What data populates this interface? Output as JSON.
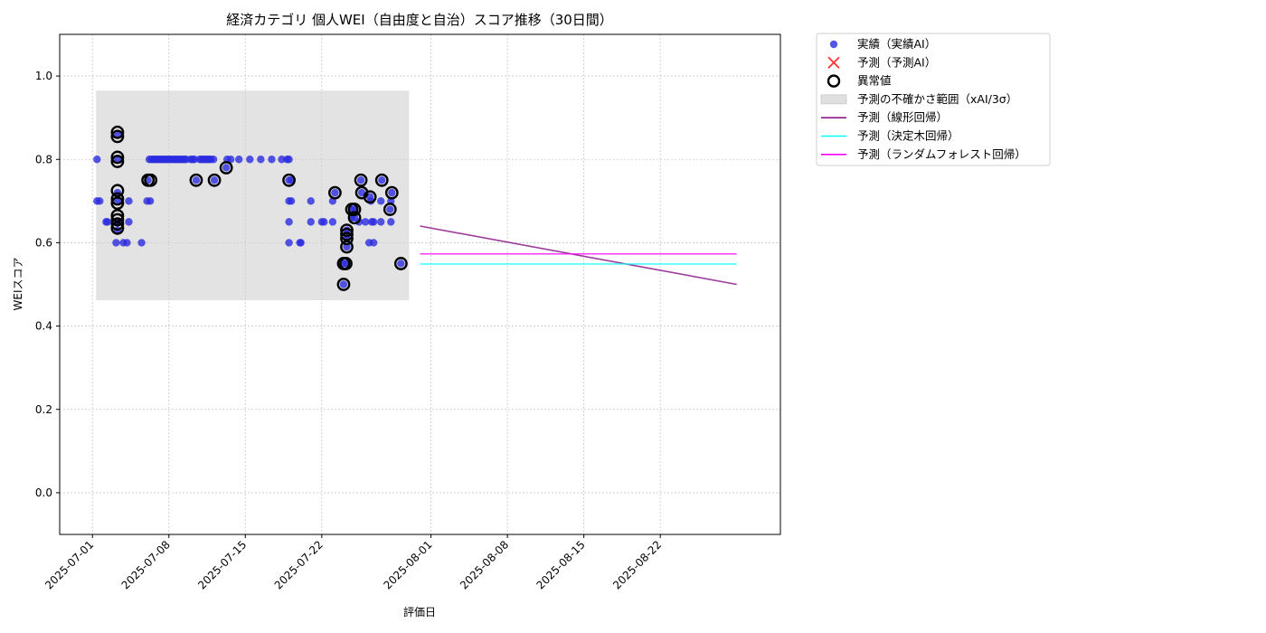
{
  "chart_data": {
    "type": "scatter",
    "title": "経済カテゴリ 個人WEI（自由度と自治）スコア推移（30日間）",
    "xlabel": "評価日",
    "ylabel": "WEIスコア",
    "xlim": [
      "2025-06-28",
      "2025-09-02"
    ],
    "ylim": [
      -0.1,
      1.1
    ],
    "x_ticks": [
      "2025-07-01",
      "2025-07-08",
      "2025-07-15",
      "2025-07-22",
      "2025-08-01",
      "2025-08-08",
      "2025-08-15",
      "2025-08-22"
    ],
    "y_ticks": [
      "0.0",
      "0.2",
      "0.4",
      "0.6",
      "0.8",
      "1.0"
    ],
    "grid": true,
    "legend_position": "outside-right-top",
    "colors": {
      "actual": "#2a2ae0",
      "predicted_marker": "#ff3030",
      "anomaly": "#000000",
      "uncertainty": "#cccccc",
      "linear": "#8b1a8b",
      "tree": "#00ffff",
      "forest": "#ff00ff"
    },
    "legend": [
      {
        "key": "actual",
        "label": "実績（実績AI）",
        "symbol": "dot"
      },
      {
        "key": "predicted",
        "label": "予測（予測AI）",
        "symbol": "cross"
      },
      {
        "key": "anomaly",
        "label": "異常値",
        "symbol": "ring"
      },
      {
        "key": "uncertainty",
        "label": "予測の不確かさ範囲（xAI/3σ）",
        "symbol": "box"
      },
      {
        "key": "linear",
        "label": "予測（線形回帰）",
        "symbol": "line"
      },
      {
        "key": "tree",
        "label": "予測（決定木回帰）",
        "symbol": "line"
      },
      {
        "key": "forest",
        "label": "予測（ランダムフォレスト回帰）",
        "symbol": "line"
      }
    ],
    "uncertainty_band": {
      "x": [
        "2025-07-01 08:00",
        "2025-07-30 00:00"
      ],
      "y": [
        0.462,
        0.965
      ]
    },
    "series": [
      {
        "name": "実績（実績AI）",
        "type": "scatter",
        "points": [
          [
            "2025-07-01 10:00",
            0.8
          ],
          [
            "2025-07-01 10:00",
            0.7
          ],
          [
            "2025-07-01 16:00",
            0.7
          ],
          [
            "2025-07-02 06:00",
            0.65
          ],
          [
            "2025-07-02 09:00",
            0.65
          ],
          [
            "2025-07-03 04:00",
            0.6
          ],
          [
            "2025-07-03 04:00",
            0.65
          ],
          [
            "2025-07-03 07:00",
            0.7
          ],
          [
            "2025-07-03 07:00",
            0.8
          ],
          [
            "2025-07-03 07:00",
            0.86
          ],
          [
            "2025-07-03 07:00",
            0.72
          ],
          [
            "2025-07-03 07:00",
            0.63
          ],
          [
            "2025-07-03 12:00",
            0.65
          ],
          [
            "2025-07-03 20:00",
            0.6
          ],
          [
            "2025-07-04 04:00",
            0.6
          ],
          [
            "2025-07-04 08:00",
            0.65
          ],
          [
            "2025-07-04 08:00",
            0.7
          ],
          [
            "2025-07-05 12:00",
            0.6
          ],
          [
            "2025-07-06 00:00",
            0.7
          ],
          [
            "2025-07-06 02:00",
            0.75
          ],
          [
            "2025-07-06 05:00",
            0.8
          ],
          [
            "2025-07-06 07:00",
            0.7
          ],
          [
            "2025-07-06 10:00",
            0.8
          ],
          [
            "2025-07-06 14:00",
            0.8
          ],
          [
            "2025-07-06 18:00",
            0.8
          ],
          [
            "2025-07-06 22:00",
            0.8
          ],
          [
            "2025-07-07 02:00",
            0.8
          ],
          [
            "2025-07-07 06:00",
            0.8
          ],
          [
            "2025-07-07 10:00",
            0.8
          ],
          [
            "2025-07-07 14:00",
            0.8
          ],
          [
            "2025-07-07 18:00",
            0.8
          ],
          [
            "2025-07-07 22:00",
            0.8
          ],
          [
            "2025-07-08 02:00",
            0.8
          ],
          [
            "2025-07-08 06:00",
            0.8
          ],
          [
            "2025-07-08 10:00",
            0.8
          ],
          [
            "2025-07-08 14:00",
            0.8
          ],
          [
            "2025-07-08 18:00",
            0.8
          ],
          [
            "2025-07-08 22:00",
            0.8
          ],
          [
            "2025-07-09 02:00",
            0.8
          ],
          [
            "2025-07-09 06:00",
            0.8
          ],
          [
            "2025-07-09 10:00",
            0.8
          ],
          [
            "2025-07-09 14:00",
            0.8
          ],
          [
            "2025-07-10 00:00",
            0.8
          ],
          [
            "2025-07-10 04:00",
            0.8
          ],
          [
            "2025-07-10 08:00",
            0.8
          ],
          [
            "2025-07-10 12:00",
            0.75
          ],
          [
            "2025-07-10 20:00",
            0.8
          ],
          [
            "2025-07-11 00:00",
            0.8
          ],
          [
            "2025-07-11 04:00",
            0.8
          ],
          [
            "2025-07-11 08:00",
            0.8
          ],
          [
            "2025-07-11 12:00",
            0.8
          ],
          [
            "2025-07-11 16:00",
            0.8
          ],
          [
            "2025-07-11 20:00",
            0.8
          ],
          [
            "2025-07-12 02:00",
            0.8
          ],
          [
            "2025-07-12 04:00",
            0.75
          ],
          [
            "2025-07-13 06:00",
            0.78
          ],
          [
            "2025-07-13 08:00",
            0.8
          ],
          [
            "2025-07-13 16:00",
            0.8
          ],
          [
            "2025-07-14 10:00",
            0.8
          ],
          [
            "2025-07-15 10:00",
            0.8
          ],
          [
            "2025-07-16 10:00",
            0.8
          ],
          [
            "2025-07-17 10:00",
            0.8
          ],
          [
            "2025-07-18 08:00",
            0.8
          ],
          [
            "2025-07-18 20:00",
            0.8
          ],
          [
            "2025-07-19 00:00",
            0.8
          ],
          [
            "2025-07-19 00:00",
            0.75
          ],
          [
            "2025-07-19 00:00",
            0.7
          ],
          [
            "2025-07-19 00:00",
            0.65
          ],
          [
            "2025-07-19 00:00",
            0.6
          ],
          [
            "2025-07-19 05:00",
            0.7
          ],
          [
            "2025-07-19 05:00",
            0.75
          ],
          [
            "2025-07-20 00:00",
            0.6
          ],
          [
            "2025-07-20 02:00",
            0.6
          ],
          [
            "2025-07-21 00:00",
            0.65
          ],
          [
            "2025-07-21 00:00",
            0.7
          ],
          [
            "2025-07-22 00:00",
            0.65
          ],
          [
            "2025-07-22 05:00",
            0.65
          ],
          [
            "2025-07-23 00:00",
            0.65
          ],
          [
            "2025-07-23 00:00",
            0.7
          ],
          [
            "2025-07-23 05:00",
            0.72
          ],
          [
            "2025-07-24 00:00",
            0.5
          ],
          [
            "2025-07-24 00:00",
            0.55
          ],
          [
            "2025-07-24 05:00",
            0.55
          ],
          [
            "2025-07-24 07:00",
            0.59
          ],
          [
            "2025-07-24 07:00",
            0.61
          ],
          [
            "2025-07-24 07:00",
            0.62
          ],
          [
            "2025-07-24 07:00",
            0.63
          ],
          [
            "2025-07-24 18:00",
            0.66
          ],
          [
            "2025-07-24 18:00",
            0.68
          ],
          [
            "2025-07-25 00:00",
            0.68
          ],
          [
            "2025-07-25 00:00",
            0.66
          ],
          [
            "2025-07-25 10:00",
            0.65
          ],
          [
            "2025-07-25 14:00",
            0.75
          ],
          [
            "2025-07-25 16:00",
            0.72
          ],
          [
            "2025-07-26 00:00",
            0.65
          ],
          [
            "2025-07-26 08:00",
            0.6
          ],
          [
            "2025-07-26 10:00",
            0.71
          ],
          [
            "2025-07-26 12:00",
            0.7
          ],
          [
            "2025-07-26 14:00",
            0.65
          ],
          [
            "2025-07-26 18:00",
            0.6
          ],
          [
            "2025-07-26 18:00",
            0.65
          ],
          [
            "2025-07-27 10:00",
            0.65
          ],
          [
            "2025-07-27 10:00",
            0.7
          ],
          [
            "2025-07-27 12:00",
            0.75
          ],
          [
            "2025-07-28 06:00",
            0.68
          ],
          [
            "2025-07-28 08:00",
            0.65
          ],
          [
            "2025-07-28 08:00",
            0.7
          ],
          [
            "2025-07-28 10:00",
            0.72
          ],
          [
            "2025-07-29 06:00",
            0.55
          ]
        ]
      },
      {
        "name": "異常値",
        "type": "scatter",
        "points": [
          [
            "2025-07-03 07:00",
            0.865
          ],
          [
            "2025-07-03 07:00",
            0.855
          ],
          [
            "2025-07-03 07:00",
            0.805
          ],
          [
            "2025-07-03 07:00",
            0.795
          ],
          [
            "2025-07-03 07:00",
            0.725
          ],
          [
            "2025-07-03 07:00",
            0.705
          ],
          [
            "2025-07-03 07:00",
            0.695
          ],
          [
            "2025-07-03 07:00",
            0.665
          ],
          [
            "2025-07-03 07:00",
            0.655
          ],
          [
            "2025-07-03 07:00",
            0.645
          ],
          [
            "2025-07-03 07:00",
            0.635
          ],
          [
            "2025-07-06 02:00",
            0.75
          ],
          [
            "2025-07-06 08:00",
            0.75
          ],
          [
            "2025-07-10 12:00",
            0.75
          ],
          [
            "2025-07-12 04:00",
            0.75
          ],
          [
            "2025-07-13 06:00",
            0.78
          ],
          [
            "2025-07-19 00:00",
            0.75
          ],
          [
            "2025-07-23 05:00",
            0.72
          ],
          [
            "2025-07-24 00:00",
            0.5
          ],
          [
            "2025-07-24 00:00",
            0.55
          ],
          [
            "2025-07-24 05:00",
            0.55
          ],
          [
            "2025-07-24 07:00",
            0.59
          ],
          [
            "2025-07-24 07:00",
            0.61
          ],
          [
            "2025-07-24 07:00",
            0.62
          ],
          [
            "2025-07-24 07:00",
            0.63
          ],
          [
            "2025-07-24 18:00",
            0.68
          ],
          [
            "2025-07-25 00:00",
            0.68
          ],
          [
            "2025-07-25 00:00",
            0.66
          ],
          [
            "2025-07-25 14:00",
            0.75
          ],
          [
            "2025-07-25 16:00",
            0.72
          ],
          [
            "2025-07-26 10:00",
            0.71
          ],
          [
            "2025-07-27 12:00",
            0.75
          ],
          [
            "2025-07-28 06:00",
            0.68
          ],
          [
            "2025-07-28 10:00",
            0.72
          ],
          [
            "2025-07-29 06:00",
            0.55
          ]
        ]
      },
      {
        "name": "予測（線形回帰）",
        "type": "line",
        "points": [
          [
            "2025-07-31",
            0.64
          ],
          [
            "2025-08-29",
            0.5
          ]
        ]
      },
      {
        "name": "予測（決定木回帰）",
        "type": "line",
        "points": [
          [
            "2025-07-31",
            0.549
          ],
          [
            "2025-08-29",
            0.549
          ]
        ]
      },
      {
        "name": "予測（ランダムフォレスト回帰）",
        "type": "line",
        "points": [
          [
            "2025-07-31",
            0.573
          ],
          [
            "2025-08-29",
            0.573
          ]
        ]
      }
    ]
  }
}
